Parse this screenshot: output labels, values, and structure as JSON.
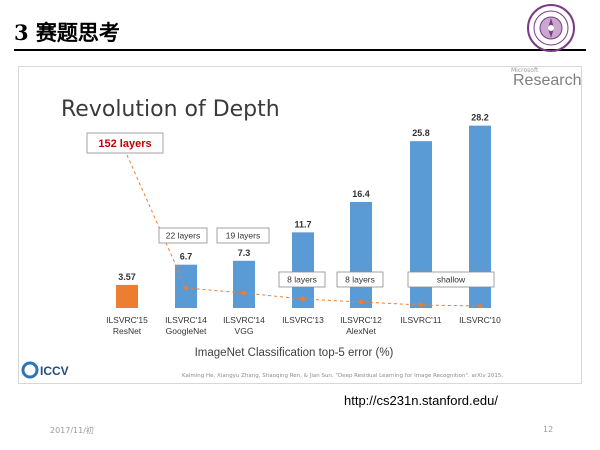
{
  "slide": {
    "title": "3 赛题思考",
    "url": "http://cs231n.stanford.edu/",
    "footer_date": "2017/11/初",
    "page_number": "12"
  },
  "figure": {
    "brand_small": "Microsoft",
    "brand": "Research",
    "iccv_logo": "ICCV",
    "citation": "Kaiming He, Xiangyu Zhang, Shaoqing Ren, & Jian Sun. \"Deep Residual Learning for Image Recognition\". arXiv 2015."
  },
  "chart_data": {
    "type": "bar",
    "title": "Revolution of Depth",
    "xlabel": "ImageNet Classification top-5 error (%)",
    "categories": [
      "ILSVRC'15\nResNet",
      "ILSVRC'14\nGoogleNet",
      "ILSVRC'14\nVGG",
      "ILSVRC'13",
      "ILSVRC'12\nAlexNet",
      "ILSVRC'11",
      "ILSVRC'10"
    ],
    "values": [
      3.57,
      6.7,
      7.3,
      11.7,
      16.4,
      25.8,
      28.2
    ],
    "value_labels": [
      "3.57",
      "6.7",
      "7.3",
      "11.7",
      "16.4",
      "25.8",
      "28.2"
    ],
    "bar_colors": [
      "#ed7d31",
      "#5b9bd5",
      "#5b9bd5",
      "#5b9bd5",
      "#5b9bd5",
      "#5b9bd5",
      "#5b9bd5"
    ],
    "layer_callouts": [
      "152 layers",
      "22 layers",
      "19 layers",
      "8 layers",
      "8 layers",
      "shallow"
    ],
    "callout_bar_index": [
      0,
      1,
      2,
      3,
      4,
      5
    ],
    "depth_line_color": "#ed7d31",
    "ylim": [
      0,
      30
    ],
    "grid": false,
    "legend": false
  }
}
